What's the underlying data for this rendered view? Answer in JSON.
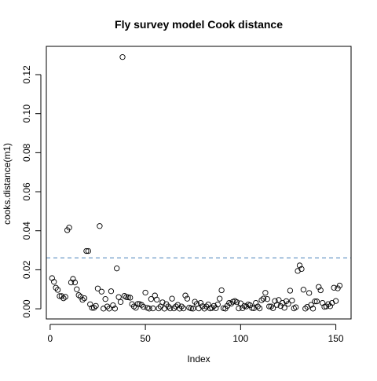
{
  "chart_data": {
    "type": "scatter",
    "title": "Fly survey model Cook distance",
    "xlabel": "Index",
    "ylabel": "cooks.distance(m1)",
    "xlim": [
      -2,
      158
    ],
    "ylim": [
      -0.0052,
      0.1345
    ],
    "x_ticks": [
      0,
      50,
      100,
      150
    ],
    "x_tick_labels": [
      "0",
      "50",
      "100",
      "150"
    ],
    "y_ticks": [
      0.0,
      0.02,
      0.04,
      0.06,
      0.08,
      0.1,
      0.12
    ],
    "y_tick_labels": [
      "0.00",
      "0.02",
      "0.04",
      "0.06",
      "0.08",
      "0.10",
      "0.12"
    ],
    "grid": false,
    "reference_line": {
      "y": 0.0261,
      "color": "#6c9bc8",
      "style": "dashed"
    },
    "point_color": "#000000",
    "points": [
      [
        1,
        0.0157
      ],
      [
        2,
        0.0138
      ],
      [
        3,
        0.0108
      ],
      [
        4,
        0.0097
      ],
      [
        5,
        0.0065
      ],
      [
        6,
        0.0065
      ],
      [
        7,
        0.0054
      ],
      [
        8,
        0.0061
      ],
      [
        9,
        0.0403
      ],
      [
        10,
        0.0416
      ],
      [
        11,
        0.0135
      ],
      [
        12,
        0.0153
      ],
      [
        13,
        0.0135
      ],
      [
        14,
        0.01
      ],
      [
        15,
        0.007
      ],
      [
        16,
        0.0062
      ],
      [
        17,
        0.0046
      ],
      [
        18,
        0.0054
      ],
      [
        19,
        0.0296
      ],
      [
        20,
        0.0296
      ],
      [
        21,
        0.0023
      ],
      [
        22,
        0.0005
      ],
      [
        23,
        0.0005
      ],
      [
        24,
        0.0015
      ],
      [
        25,
        0.0104
      ],
      [
        26,
        0.0424
      ],
      [
        27,
        0.0088
      ],
      [
        28,
        0.0001
      ],
      [
        29,
        0.005
      ],
      [
        30,
        0.0012
      ],
      [
        31,
        0.0001
      ],
      [
        32,
        0.009
      ],
      [
        33,
        0.0018
      ],
      [
        34,
        0.0001
      ],
      [
        35,
        0.0207
      ],
      [
        36,
        0.006
      ],
      [
        37,
        0.0035
      ],
      [
        38,
        0.129
      ],
      [
        39,
        0.0066
      ],
      [
        40,
        0.006
      ],
      [
        41,
        0.0059
      ],
      [
        42,
        0.0057
      ],
      [
        43,
        0.0024
      ],
      [
        44,
        0.0012
      ],
      [
        45,
        0.0005
      ],
      [
        46,
        0.0025
      ],
      [
        47,
        0.0024
      ],
      [
        48,
        0.002
      ],
      [
        49,
        0.001
      ],
      [
        50,
        0.0083
      ],
      [
        51,
        0.0005
      ],
      [
        52,
        0.0001
      ],
      [
        53,
        0.005
      ],
      [
        54,
        0.0002
      ],
      [
        55,
        0.0068
      ],
      [
        56,
        0.0047
      ],
      [
        57,
        0.0002
      ],
      [
        58,
        0.0012
      ],
      [
        59,
        0.0033
      ],
      [
        60,
        0.0001
      ],
      [
        61,
        0.0024
      ],
      [
        62,
        0.0012
      ],
      [
        63,
        0.0002
      ],
      [
        64,
        0.0052
      ],
      [
        65,
        0.0002
      ],
      [
        66,
        0.0012
      ],
      [
        67,
        0.002
      ],
      [
        68,
        0.0001
      ],
      [
        69,
        0.0012
      ],
      [
        70,
        0.0002
      ],
      [
        71,
        0.0068
      ],
      [
        72,
        0.0052
      ],
      [
        73,
        0.0006
      ],
      [
        74,
        0.0002
      ],
      [
        75,
        0.0001
      ],
      [
        76,
        0.0036
      ],
      [
        77,
        0.0025
      ],
      [
        78,
        0.0002
      ],
      [
        79,
        0.003
      ],
      [
        80,
        0.0013
      ],
      [
        81,
        0.0001
      ],
      [
        82,
        0.0012
      ],
      [
        83,
        0.0022
      ],
      [
        84,
        0.0002
      ],
      [
        85,
        0.0004
      ],
      [
        86,
        0.0015
      ],
      [
        87,
        0.0003
      ],
      [
        88,
        0.0022
      ],
      [
        89,
        0.0052
      ],
      [
        90,
        0.0095
      ],
      [
        91,
        0.0003
      ],
      [
        92,
        0.0001
      ],
      [
        93,
        0.0015
      ],
      [
        94,
        0.003
      ],
      [
        95,
        0.0026
      ],
      [
        96,
        0.0036
      ],
      [
        97,
        0.004
      ],
      [
        98,
        0.0034
      ],
      [
        99,
        0.0002
      ],
      [
        100,
        0.0028
      ],
      [
        101,
        0.0003
      ],
      [
        102,
        0.0015
      ],
      [
        103,
        0.0012
      ],
      [
        104,
        0.0022
      ],
      [
        105,
        0.0018
      ],
      [
        106,
        0.0004
      ],
      [
        107,
        0.0003
      ],
      [
        108,
        0.003
      ],
      [
        109,
        0.0012
      ],
      [
        110,
        0.0002
      ],
      [
        111,
        0.0044
      ],
      [
        112,
        0.0052
      ],
      [
        113,
        0.0082
      ],
      [
        114,
        0.005
      ],
      [
        115,
        0.0012
      ],
      [
        116,
        0.0012
      ],
      [
        117,
        0.0003
      ],
      [
        118,
        0.004
      ],
      [
        119,
        0.002
      ],
      [
        120,
        0.0045
      ],
      [
        121,
        0.0014
      ],
      [
        122,
        0.003
      ],
      [
        123,
        0.0005
      ],
      [
        124,
        0.0039
      ],
      [
        125,
        0.0025
      ],
      [
        126,
        0.0093
      ],
      [
        127,
        0.0042
      ],
      [
        128,
        0.0002
      ],
      [
        129,
        0.0008
      ],
      [
        130,
        0.0194
      ],
      [
        131,
        0.0222
      ],
      [
        132,
        0.0204
      ],
      [
        133,
        0.0098
      ],
      [
        134,
        0.0001
      ],
      [
        135,
        0.001
      ],
      [
        136,
        0.0081
      ],
      [
        137,
        0.002
      ],
      [
        138,
        0.0001
      ],
      [
        139,
        0.0038
      ],
      [
        140,
        0.0038
      ],
      [
        141,
        0.0112
      ],
      [
        142,
        0.0095
      ],
      [
        143,
        0.003
      ],
      [
        144,
        0.001
      ],
      [
        145,
        0.0012
      ],
      [
        146,
        0.0024
      ],
      [
        147,
        0.0013
      ],
      [
        148,
        0.003
      ],
      [
        149,
        0.0108
      ],
      [
        150,
        0.004
      ],
      [
        151,
        0.0105
      ],
      [
        152,
        0.0119
      ]
    ]
  }
}
